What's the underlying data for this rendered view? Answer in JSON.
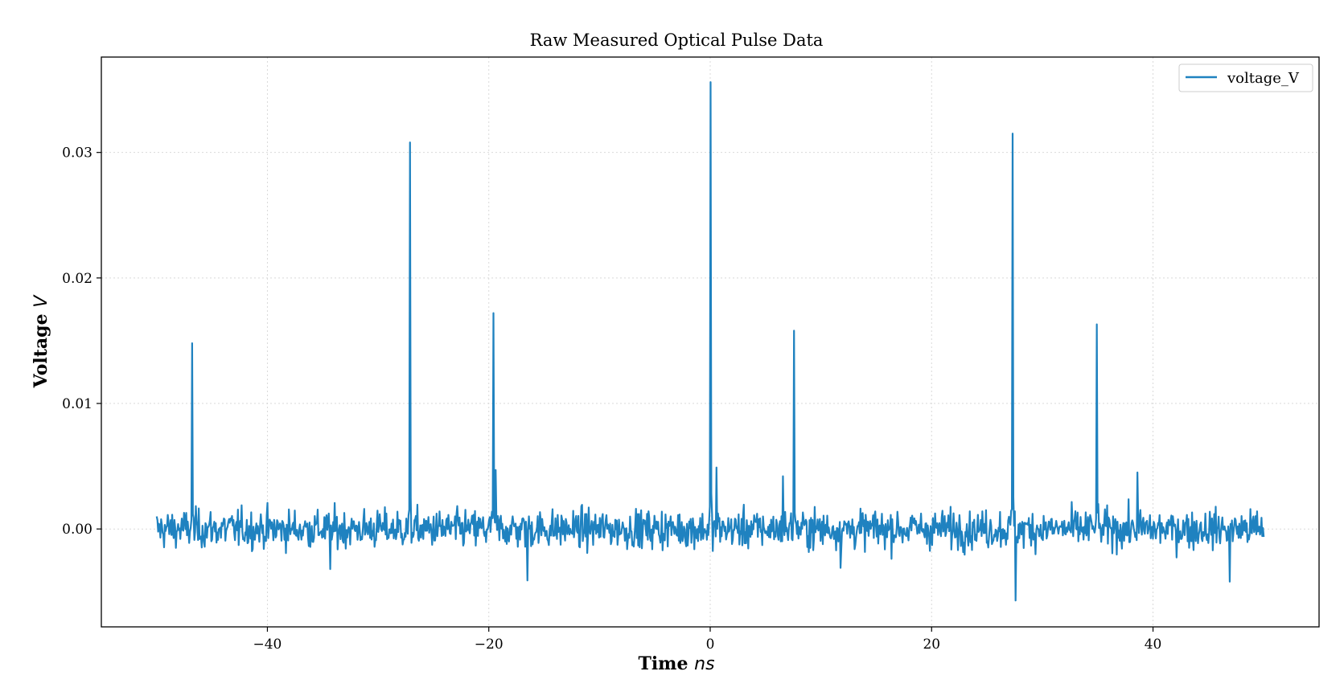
{
  "chart_data": {
    "type": "line",
    "title": "Raw Measured Optical Pulse Data",
    "xlabel": "Time",
    "xlabel_unit": "ns",
    "ylabel": "Voltage",
    "ylabel_unit": "V",
    "xlim": [
      -55,
      55
    ],
    "ylim": [
      -0.0078,
      0.0376
    ],
    "xticks": [
      -40,
      -20,
      0,
      20,
      40
    ],
    "xtick_labels": [
      "−40",
      "−20",
      "0",
      "20",
      "40"
    ],
    "yticks": [
      0.0,
      0.01,
      0.02,
      0.03
    ],
    "ytick_labels": [
      "0.00",
      "0.01",
      "0.02",
      "0.03"
    ],
    "grid": true,
    "legend_position": "top-right",
    "series": [
      {
        "name": "voltage_V",
        "color": "#1f82c0",
        "x_range": [
          -50,
          50
        ],
        "noise_amplitude": 0.0015,
        "pulses": [
          {
            "x": -46.8,
            "y": 0.0148
          },
          {
            "x": -27.1,
            "y": 0.0308
          },
          {
            "x": -19.6,
            "y": 0.0172
          },
          {
            "x": 0.0,
            "y": 0.0356
          },
          {
            "x": 7.6,
            "y": 0.0158
          },
          {
            "x": 27.3,
            "y": 0.0315
          },
          {
            "x": 34.9,
            "y": 0.0163
          }
        ],
        "spikes": [
          {
            "x": -16.5,
            "y": -0.0041
          },
          {
            "x": -19.4,
            "y": 0.0047
          },
          {
            "x": 0.6,
            "y": 0.0049
          },
          {
            "x": 6.6,
            "y": 0.0042
          },
          {
            "x": 27.6,
            "y": -0.0057
          },
          {
            "x": 38.6,
            "y": 0.0045
          },
          {
            "x": 46.9,
            "y": -0.0042
          },
          {
            "x": -34.3,
            "y": -0.0032
          },
          {
            "x": 11.8,
            "y": -0.0031
          }
        ]
      }
    ]
  }
}
